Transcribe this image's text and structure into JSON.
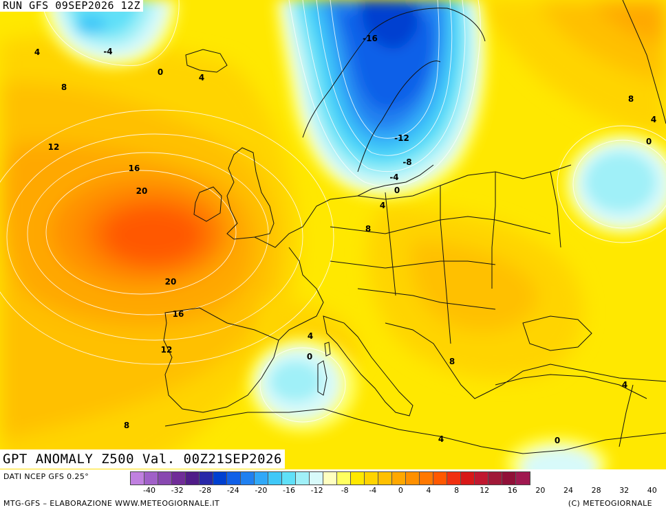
{
  "header": {
    "run_label": "RUN GFS 09SEP2026 12Z"
  },
  "map": {
    "title": "GPT ANOMALY Z500 Val. 00Z21SEP2026",
    "contour_labels": [
      "4",
      "-4",
      "0",
      "4",
      "8",
      "12",
      "16",
      "20",
      "20",
      "16",
      "12",
      "8",
      "-16",
      "-12",
      "-8",
      "-4",
      "0",
      "4",
      "8",
      "4",
      "0",
      "8",
      "8",
      "4",
      "0",
      "4",
      "4",
      "0"
    ],
    "colors": {
      "background": "#ffff60",
      "land_border": "#111111"
    }
  },
  "footer": {
    "data_source": "DATI NCEP GFS 0.25°",
    "credit": "MTG-GFS – ELABORAZIONE WWW.METEOGIORNALE.IT",
    "copyright": "(C) METEOGIORNALE",
    "scale_ticks": [
      "-40",
      "-32",
      "-28",
      "-24",
      "-20",
      "-16",
      "-12",
      "-8",
      "-4",
      "0",
      "4",
      "8",
      "12",
      "16",
      "20",
      "24",
      "28",
      "32",
      "40"
    ],
    "scale_colors": [
      "#c080e0",
      "#a060c8",
      "#8848b0",
      "#702c98",
      "#501c88",
      "#2828a8",
      "#0040d0",
      "#1060e8",
      "#2080f0",
      "#30a8f8",
      "#40c8f8",
      "#60e0f8",
      "#a0f0f8",
      "#d8fafa",
      "#ffffc0",
      "#ffff60",
      "#ffe800",
      "#ffd400",
      "#ffc000",
      "#ffa800",
      "#ff9000",
      "#ff7800",
      "#ff5800",
      "#f03010",
      "#d81818",
      "#c01830",
      "#a01838",
      "#901038",
      "#a01850"
    ]
  }
}
